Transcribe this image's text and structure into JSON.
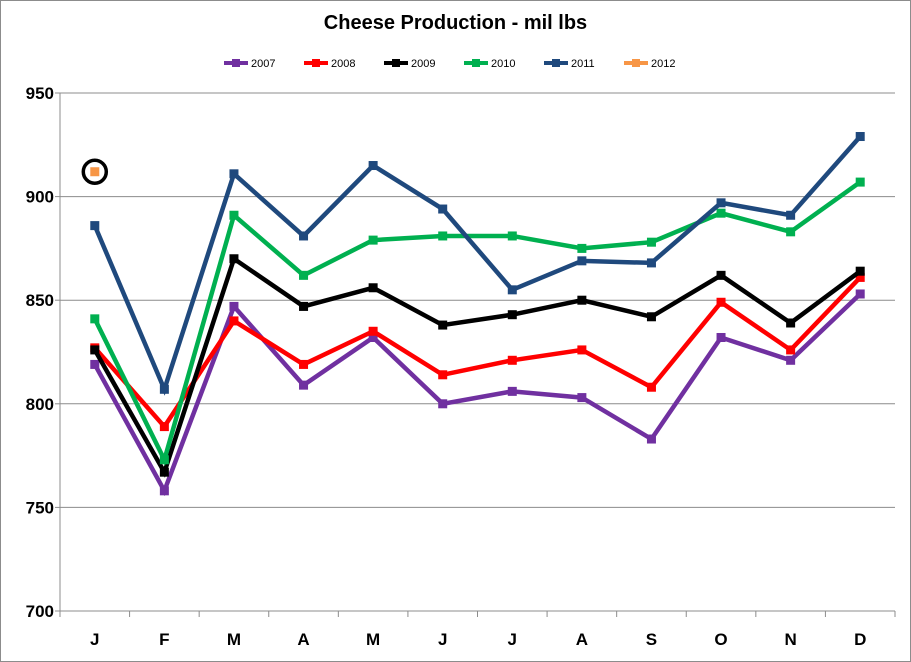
{
  "chart_data": {
    "type": "line",
    "title": "Cheese Production  - mil lbs",
    "xlabel": "",
    "ylabel": "",
    "categories": [
      "J",
      "F",
      "M",
      "A",
      "M",
      "J",
      "J",
      "A",
      "S",
      "O",
      "N",
      "D"
    ],
    "ylim": [
      700,
      950
    ],
    "yticks": [
      700,
      750,
      800,
      850,
      900,
      950
    ],
    "grid": "horizontal",
    "legend_position": "top",
    "series": [
      {
        "name": "2007",
        "color": "#7030a0",
        "values": [
          819,
          758,
          847,
          809,
          832,
          800,
          806,
          803,
          783,
          832,
          821,
          853
        ]
      },
      {
        "name": "2008",
        "color": "#ff0000",
        "values": [
          827,
          789,
          840,
          819,
          835,
          814,
          821,
          826,
          808,
          849,
          826,
          861
        ]
      },
      {
        "name": "2009",
        "color": "#000000",
        "values": [
          826,
          767,
          870,
          847,
          856,
          838,
          843,
          850,
          842,
          862,
          839,
          864
        ]
      },
      {
        "name": "2010",
        "color": "#00b050",
        "values": [
          841,
          773,
          891,
          862,
          879,
          881,
          881,
          875,
          878,
          892,
          883,
          907
        ]
      },
      {
        "name": "2011",
        "color": "#1f497d",
        "values": [
          886,
          807,
          911,
          881,
          915,
          894,
          855,
          869,
          868,
          897,
          891,
          929
        ]
      },
      {
        "name": "2012",
        "color": "#f79646",
        "values": [
          912,
          null,
          null,
          null,
          null,
          null,
          null,
          null,
          null,
          null,
          null,
          null
        ]
      }
    ],
    "annotation": {
      "type": "circle",
      "series": "2012",
      "category_index": 0
    }
  }
}
